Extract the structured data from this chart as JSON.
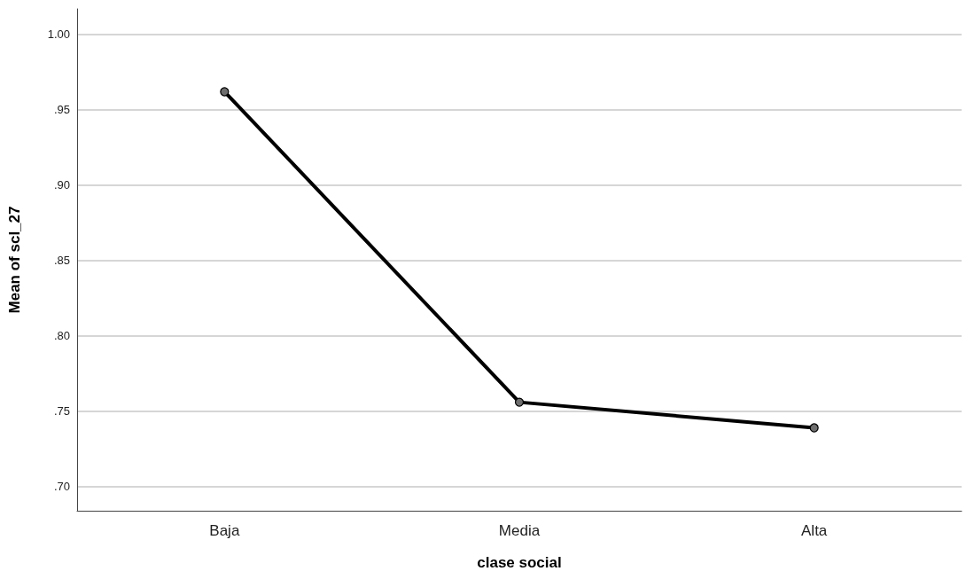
{
  "chart_data": {
    "type": "line",
    "xlabel": "clase social",
    "ylabel": "Mean of scl_27",
    "categories": [
      "Baja",
      "Media",
      "Alta"
    ],
    "series": [
      {
        "color": "#000000",
        "values": [
          0.962,
          0.756,
          0.739
        ]
      }
    ],
    "ylim": [
      0.684,
      1.017
    ],
    "yticks": [
      {
        "value": 0.7,
        "label": ".70"
      },
      {
        "value": 0.75,
        "label": ".75"
      },
      {
        "value": 0.8,
        "label": ".80"
      },
      {
        "value": 0.85,
        "label": ".85"
      },
      {
        "value": 0.9,
        "label": ".90"
      },
      {
        "value": 0.95,
        "label": ".95"
      },
      {
        "value": 1.0,
        "label": "1.00"
      }
    ],
    "grid": "y",
    "marker": "circle",
    "line_style": "solid"
  }
}
